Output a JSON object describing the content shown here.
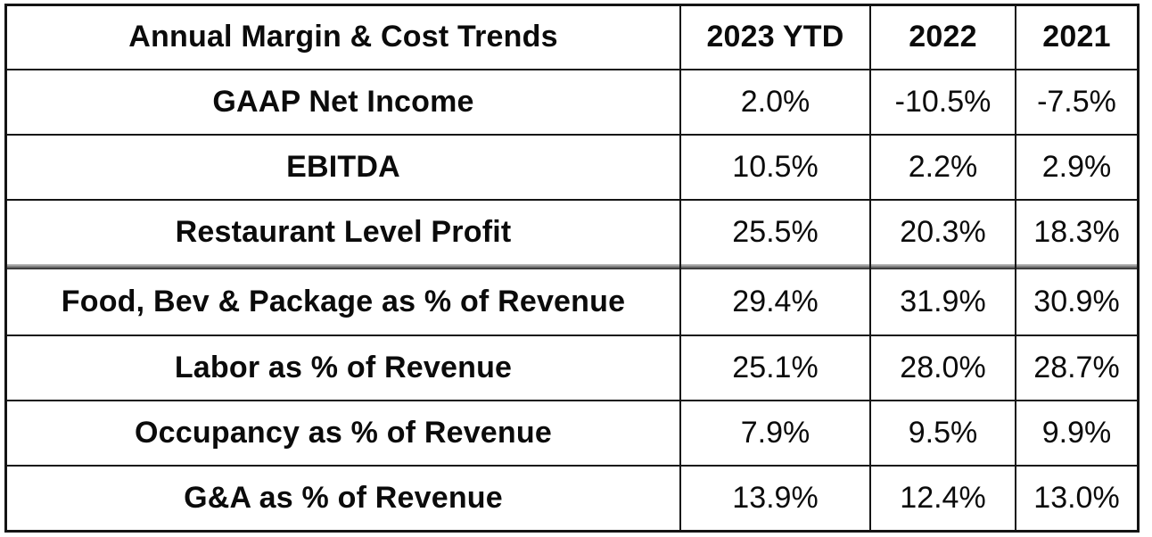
{
  "chart_data": {
    "type": "table",
    "title": "Annual Margin & Cost Trends",
    "columns": [
      "2023 YTD",
      "2022",
      "2021"
    ],
    "rows": [
      {
        "label": "GAAP Net Income",
        "values": [
          "2.0%",
          "-10.5%",
          "-7.5%"
        ]
      },
      {
        "label": "EBITDA",
        "values": [
          "10.5%",
          "2.2%",
          "2.9%"
        ]
      },
      {
        "label": "Restaurant Level Profit",
        "values": [
          "25.5%",
          "20.3%",
          "18.3%"
        ]
      },
      {
        "label": "Food, Bev & Package as % of Revenue",
        "values": [
          "29.4%",
          "31.9%",
          "30.9%"
        ]
      },
      {
        "label": "Labor as % of Revenue",
        "values": [
          "25.1%",
          "28.0%",
          "28.7%"
        ]
      },
      {
        "label": "Occupancy as % of Revenue",
        "values": [
          "7.9%",
          "9.5%",
          "9.9%"
        ]
      },
      {
        "label": "G&A as % of Revenue",
        "values": [
          "13.9%",
          "12.4%",
          "13.0%"
        ]
      }
    ],
    "layout": {
      "grid": true,
      "thick_separator_after": "Restaurant Level Profit",
      "label_column_align": "center",
      "value_align": "center"
    }
  },
  "colors": {
    "background": "#ffffff",
    "grid_border": "#141414",
    "text": "#0b0b0b",
    "separator_gray_top": "#c6c6c6",
    "separator_gray_bottom": "#1f1f1f"
  }
}
